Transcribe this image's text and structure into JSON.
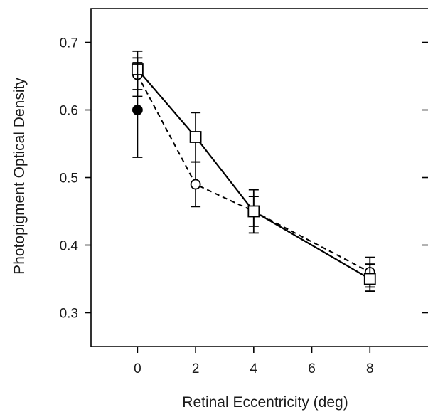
{
  "chart_data": {
    "type": "line",
    "xlabel": "Retinal Eccentricity (deg)",
    "ylabel": "Photopigment Optical Density",
    "xlim": [
      -1.6,
      10
    ],
    "ylim": [
      0.25,
      0.75
    ],
    "x_ticks": [
      0,
      2,
      4,
      6,
      8
    ],
    "x_tick_labels": [
      "0",
      "2",
      "4",
      "6",
      "8"
    ],
    "y_ticks": [
      0.3,
      0.4,
      0.5,
      0.6,
      0.7
    ],
    "y_tick_labels": [
      "0.3",
      "0.4",
      "0.5",
      "0.6",
      "0.7"
    ],
    "grid": false,
    "legend": "none",
    "series": [
      {
        "line": "solid",
        "marker": "open-square",
        "x": [
          0,
          2,
          4,
          8
        ],
        "y": [
          0.66,
          0.56,
          0.45,
          0.35
        ],
        "err_low": [
          0.63,
          0.523,
          0.428,
          0.332
        ],
        "err_high": [
          0.687,
          0.596,
          0.472,
          0.372
        ]
      },
      {
        "line": "dashed",
        "marker": "open-circle",
        "x": [
          0,
          2,
          4,
          8
        ],
        "y": [
          0.652,
          0.49,
          0.45,
          0.36
        ],
        "err_low": [
          0.62,
          0.457,
          0.418,
          0.338
        ],
        "err_high": [
          0.677,
          0.523,
          0.482,
          0.382
        ]
      },
      {
        "line": "none",
        "marker": "filled-circle",
        "x": [
          0
        ],
        "y": [
          0.6
        ],
        "err_low": [
          0.53
        ],
        "err_high": [
          0.67
        ]
      }
    ]
  }
}
